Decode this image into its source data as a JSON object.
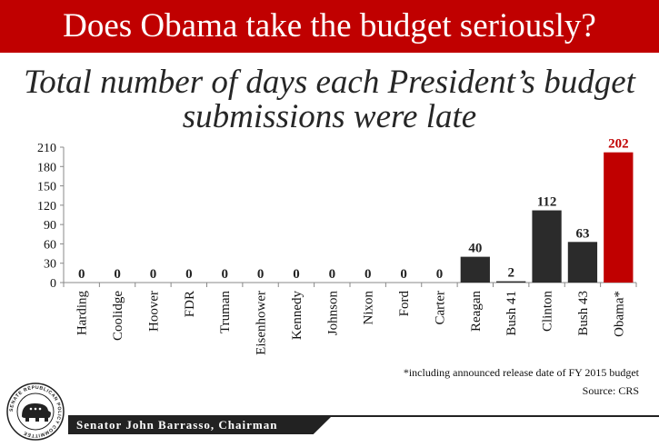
{
  "banner": {
    "title": "Does Obama take the budget seriously?"
  },
  "chart_data": {
    "type": "bar",
    "title": "Total number of days each President’s budget submissions were late",
    "categories": [
      "Harding",
      "Coolidge",
      "Hoover",
      "FDR",
      "Truman",
      "Eisenhower",
      "Kennedy",
      "Johnson",
      "Nixon",
      "Ford",
      "Carter",
      "Reagan",
      "Bush 41",
      "Clinton",
      "Bush 43",
      "Obama*"
    ],
    "values": [
      0,
      0,
      0,
      0,
      0,
      0,
      0,
      0,
      0,
      0,
      0,
      40,
      2,
      112,
      63,
      202
    ],
    "highlight_index": 15,
    "ylim": [
      0,
      210
    ],
    "yticks": [
      0,
      30,
      60,
      90,
      120,
      150,
      180,
      210
    ],
    "grid": false,
    "colors": {
      "bar": "#2b2b2b",
      "highlight": "#c00000",
      "label": "#222222",
      "highlight_label": "#c00000"
    }
  },
  "notes": {
    "footnote": "*including announced release date of FY 2015 budget",
    "source": "Source: CRS"
  },
  "footer": {
    "chairman": "Senator John Barrasso, Chairman",
    "logo_text": "SENATE REPUBLICAN POLICY COMMITTEE",
    "logo_icon": "elephant-icon"
  }
}
